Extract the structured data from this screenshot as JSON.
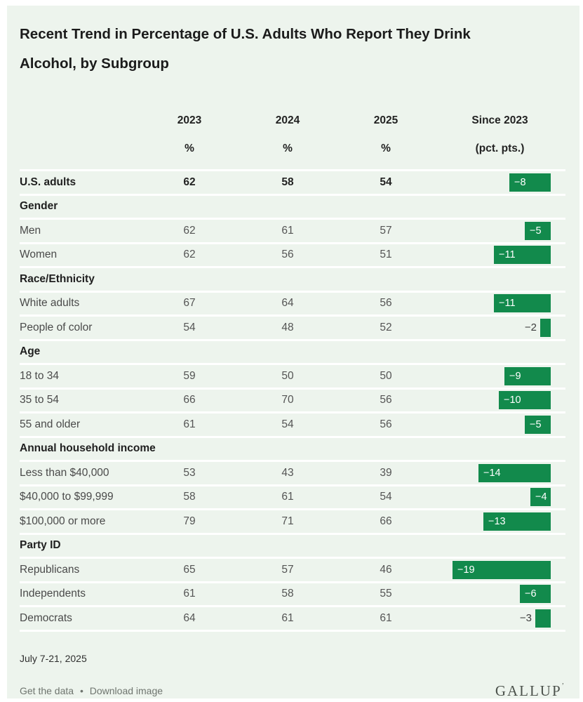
{
  "title_line1": "Recent Trend in Percentage of U.S. Adults Who Report They Drink",
  "title_line2": "Alcohol, by Subgroup",
  "colors": {
    "accent_green": "#128a4c",
    "panel_bg": "#edf4ed",
    "separator": "#ffffff"
  },
  "chart_data": {
    "type": "table",
    "title": "Recent Trend in Percentage of U.S. Adults Who Report They Drink Alcohol, by Subgroup",
    "columns": [
      "2023",
      "2024",
      "2025",
      "Since 2023"
    ],
    "unit_row": [
      "%",
      "%",
      "%",
      "(pct. pts.)"
    ],
    "bar_column": "Since 2023",
    "bar_range": [
      -19,
      0
    ],
    "rows": [
      {
        "kind": "total",
        "label": "U.S. adults",
        "v2023": 62,
        "v2024": 58,
        "v2025": 54,
        "change": -8,
        "change_label": "−8"
      },
      {
        "kind": "section",
        "label": "Gender"
      },
      {
        "kind": "data",
        "label": "Men",
        "v2023": 62,
        "v2024": 61,
        "v2025": 57,
        "change": -5,
        "change_label": "−5"
      },
      {
        "kind": "data",
        "label": "Women",
        "v2023": 62,
        "v2024": 56,
        "v2025": 51,
        "change": -11,
        "change_label": "−11"
      },
      {
        "kind": "section",
        "label": "Race/Ethnicity"
      },
      {
        "kind": "data",
        "label": "White adults",
        "v2023": 67,
        "v2024": 64,
        "v2025": 56,
        "change": -11,
        "change_label": "−11"
      },
      {
        "kind": "data",
        "label": "People of color",
        "v2023": 54,
        "v2024": 48,
        "v2025": 52,
        "change": -2,
        "change_label": "−2"
      },
      {
        "kind": "section",
        "label": "Age"
      },
      {
        "kind": "data",
        "label": "18 to 34",
        "v2023": 59,
        "v2024": 50,
        "v2025": 50,
        "change": -9,
        "change_label": "−9"
      },
      {
        "kind": "data",
        "label": "35 to 54",
        "v2023": 66,
        "v2024": 70,
        "v2025": 56,
        "change": -10,
        "change_label": "−10"
      },
      {
        "kind": "data",
        "label": "55 and older",
        "v2023": 61,
        "v2024": 54,
        "v2025": 56,
        "change": -5,
        "change_label": "−5"
      },
      {
        "kind": "section",
        "label": "Annual household income"
      },
      {
        "kind": "data",
        "label": "Less than $40,000",
        "v2023": 53,
        "v2024": 43,
        "v2025": 39,
        "change": -14,
        "change_label": "−14"
      },
      {
        "kind": "data",
        "label": "$40,000 to $99,999",
        "v2023": 58,
        "v2024": 61,
        "v2025": 54,
        "change": -4,
        "change_label": "−4"
      },
      {
        "kind": "data",
        "label": "$100,000 or more",
        "v2023": 79,
        "v2024": 71,
        "v2025": 66,
        "change": -13,
        "change_label": "−13"
      },
      {
        "kind": "section",
        "label": "Party ID"
      },
      {
        "kind": "data",
        "label": "Republicans",
        "v2023": 65,
        "v2024": 57,
        "v2025": 46,
        "change": -19,
        "change_label": "−19"
      },
      {
        "kind": "data",
        "label": "Independents",
        "v2023": 61,
        "v2024": 58,
        "v2025": 55,
        "change": -6,
        "change_label": "−6"
      },
      {
        "kind": "data",
        "label": "Democrats",
        "v2023": 64,
        "v2024": 61,
        "v2025": 61,
        "change": -3,
        "change_label": "−3"
      }
    ]
  },
  "footer": {
    "date": "July 7-21, 2025",
    "links": [
      "Get the data",
      "Download image"
    ],
    "separator": "•",
    "logo": "GALLUP",
    "trademark": "’"
  }
}
